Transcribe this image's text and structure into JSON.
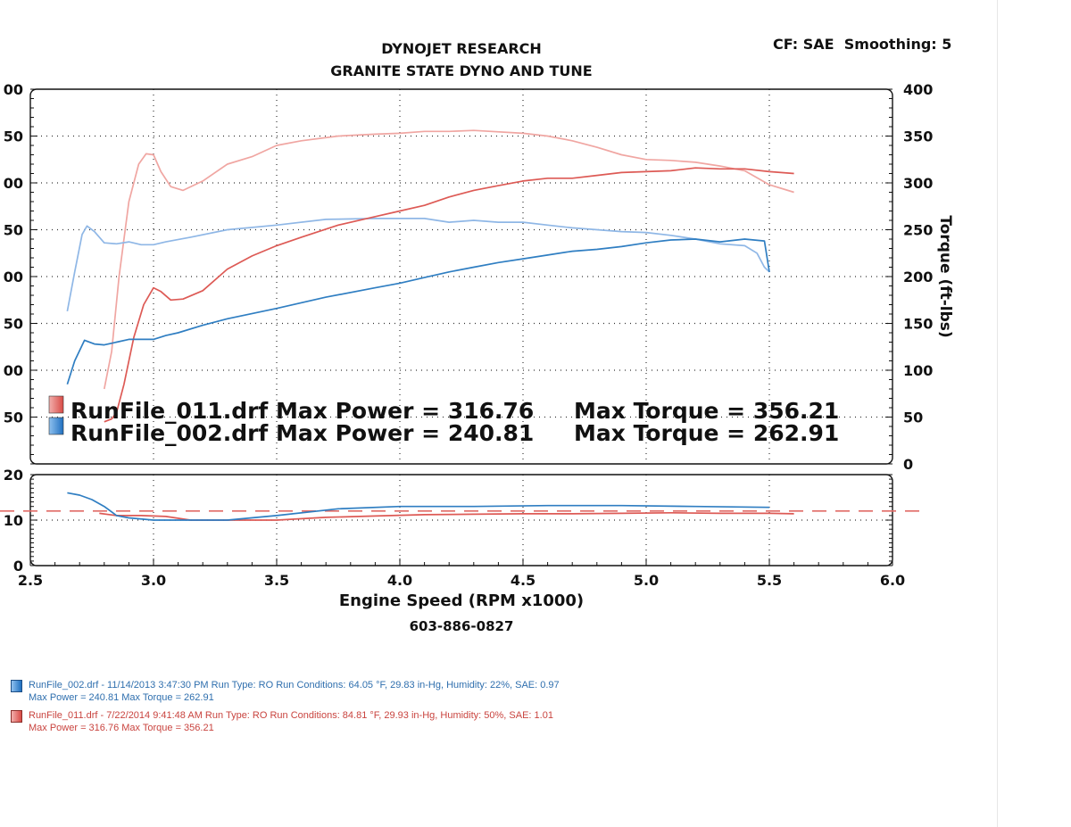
{
  "header": {
    "company": "DYNOJET RESEARCH",
    "shop": "GRANITE STATE DYNO AND TUNE",
    "settings": "CF: SAE  Smoothing: 5",
    "phone": "603-886-0827"
  },
  "chart_data": {
    "type": "line",
    "xlabel": "Engine Speed (RPM x1000)",
    "y2label": "Torque (ft-lbs)",
    "xlim": [
      2.5,
      6.0
    ],
    "x_ticks": [
      "2.5",
      "3.0",
      "3.5",
      "4.0",
      "4.5",
      "5.0",
      "5.5",
      "6.0"
    ],
    "main_ylim": [
      0,
      400
    ],
    "main_y_ticks_left": [
      "00",
      "50",
      "00",
      "50",
      "00",
      "50",
      "00",
      "50"
    ],
    "main_y_ticks_right": [
      "400",
      "350",
      "300",
      "250",
      "200",
      "150",
      "100",
      "50",
      "0"
    ],
    "sub_ylim": [
      0,
      20
    ],
    "sub_y_ticks": [
      "20",
      "10",
      "0"
    ],
    "sub_reference_line": 12,
    "grid": true,
    "colors": {
      "run011": "#dd5a55",
      "run002": "#2f7ec2",
      "run011_torque": "#f0a6a2",
      "run002_torque": "#8fb7e6"
    },
    "summary": [
      {
        "label": "RunFile_011.drf Max Power = 316.76",
        "torque": "Max Torque = 356.21"
      },
      {
        "label": "RunFile_002.drf Max Power = 240.81",
        "torque": "Max Torque = 262.91"
      }
    ],
    "series": [
      {
        "name": "RunFile_011.drf",
        "kind": "torque",
        "x": [
          2.8,
          2.83,
          2.86,
          2.9,
          2.94,
          2.97,
          3.0,
          3.03,
          3.07,
          3.12,
          3.2,
          3.3,
          3.4,
          3.5,
          3.6,
          3.75,
          3.9,
          4.0,
          4.1,
          4.2,
          4.3,
          4.5,
          4.6,
          4.7,
          4.8,
          4.9,
          5.0,
          5.1,
          5.2,
          5.3,
          5.4,
          5.5,
          5.6
        ],
        "y": [
          80,
          120,
          200,
          280,
          320,
          331,
          330,
          312,
          296,
          292,
          302,
          320,
          328,
          340,
          345,
          350,
          352,
          353,
          355,
          355,
          356,
          353,
          350,
          345,
          338,
          330,
          325,
          324,
          322,
          318,
          313,
          298,
          290
        ]
      },
      {
        "name": "RunFile_002.drf",
        "kind": "torque",
        "x": [
          2.65,
          2.68,
          2.71,
          2.73,
          2.76,
          2.8,
          2.85,
          2.9,
          2.95,
          3.0,
          3.05,
          3.15,
          3.3,
          3.5,
          3.7,
          3.9,
          4.0,
          4.1,
          4.2,
          4.3,
          4.4,
          4.5,
          4.6,
          4.7,
          4.8,
          4.9,
          5.0,
          5.1,
          5.2,
          5.3,
          5.4,
          5.45,
          5.48,
          5.5
        ],
        "y": [
          163,
          205,
          245,
          254,
          248,
          236,
          235,
          237,
          234,
          234,
          237,
          242,
          250,
          255,
          261,
          262,
          262,
          262,
          258,
          260,
          258,
          258,
          255,
          252,
          250,
          248,
          247,
          244,
          240,
          235,
          233,
          225,
          210,
          205
        ]
      },
      {
        "name": "RunFile_011.drf",
        "kind": "power",
        "x": [
          2.8,
          2.83,
          2.85,
          2.88,
          2.92,
          2.96,
          3.0,
          3.03,
          3.07,
          3.12,
          3.2,
          3.3,
          3.4,
          3.5,
          3.6,
          3.75,
          3.9,
          4.0,
          4.1,
          4.2,
          4.3,
          4.4,
          4.5,
          4.6,
          4.7,
          4.8,
          4.9,
          5.0,
          5.1,
          5.2,
          5.3,
          5.4,
          5.5,
          5.6
        ],
        "y": [
          45,
          48,
          55,
          85,
          135,
          170,
          188,
          184,
          175,
          176,
          185,
          208,
          222,
          233,
          242,
          255,
          264,
          270,
          276,
          285,
          292,
          297,
          302,
          305,
          305,
          308,
          311,
          312,
          313,
          316,
          315,
          315,
          312,
          310
        ]
      },
      {
        "name": "RunFile_002.drf",
        "kind": "power",
        "x": [
          2.65,
          2.68,
          2.72,
          2.76,
          2.8,
          2.85,
          2.9,
          2.95,
          3.0,
          3.05,
          3.1,
          3.2,
          3.3,
          3.5,
          3.7,
          3.9,
          4.0,
          4.1,
          4.2,
          4.3,
          4.4,
          4.5,
          4.6,
          4.7,
          4.8,
          4.9,
          5.0,
          5.1,
          5.2,
          5.3,
          5.4,
          5.48,
          5.5
        ],
        "y": [
          85,
          110,
          132,
          128,
          127,
          130,
          133,
          133,
          133,
          137,
          140,
          148,
          155,
          166,
          178,
          188,
          193,
          199,
          205,
          210,
          215,
          219,
          223,
          227,
          229,
          232,
          236,
          239,
          240,
          237,
          240,
          238,
          205
        ]
      },
      {
        "name": "RunFile_011.drf",
        "kind": "afr",
        "x": [
          2.78,
          2.85,
          2.95,
          3.05,
          3.15,
          3.3,
          3.5,
          3.7,
          3.9,
          4.1,
          4.3,
          4.5,
          4.7,
          4.9,
          5.1,
          5.3,
          5.5,
          5.6
        ],
        "y": [
          11.5,
          11.0,
          11.0,
          10.8,
          10.0,
          10.0,
          10.0,
          10.6,
          10.9,
          11.2,
          11.3,
          11.4,
          11.4,
          11.5,
          11.6,
          11.5,
          11.5,
          11.4
        ]
      },
      {
        "name": "RunFile_002.drf",
        "kind": "afr",
        "x": [
          2.65,
          2.7,
          2.75,
          2.8,
          2.85,
          2.9,
          3.0,
          3.15,
          3.3,
          3.5,
          3.75,
          4.0,
          4.3,
          4.6,
          4.9,
          5.2,
          5.5
        ],
        "y": [
          16.0,
          15.5,
          14.5,
          13.0,
          11.0,
          10.5,
          10.0,
          10.0,
          10.0,
          11.0,
          12.5,
          13.0,
          13.0,
          13.2,
          13.2,
          13.0,
          12.8
        ]
      }
    ]
  },
  "footer": {
    "run002_line1": "RunFile_002.drf - 11/14/2013 3:47:30 PM  Run Type: RO  Run Conditions: 64.05 °F, 29.83 in-Hg,  Humidity:  22%, SAE: 0.97",
    "run002_line2": "Max Power = 240.81  Max Torque = 262.91",
    "run011_line1": "RunFile_011.drf - 7/22/2014 9:41:48 AM  Run Type: RO  Run Conditions: 84.81 °F, 29.93 in-Hg,  Humidity:  50%, SAE: 1.01",
    "run011_line2": "Max Power = 316.76  Max Torque = 356.21"
  }
}
